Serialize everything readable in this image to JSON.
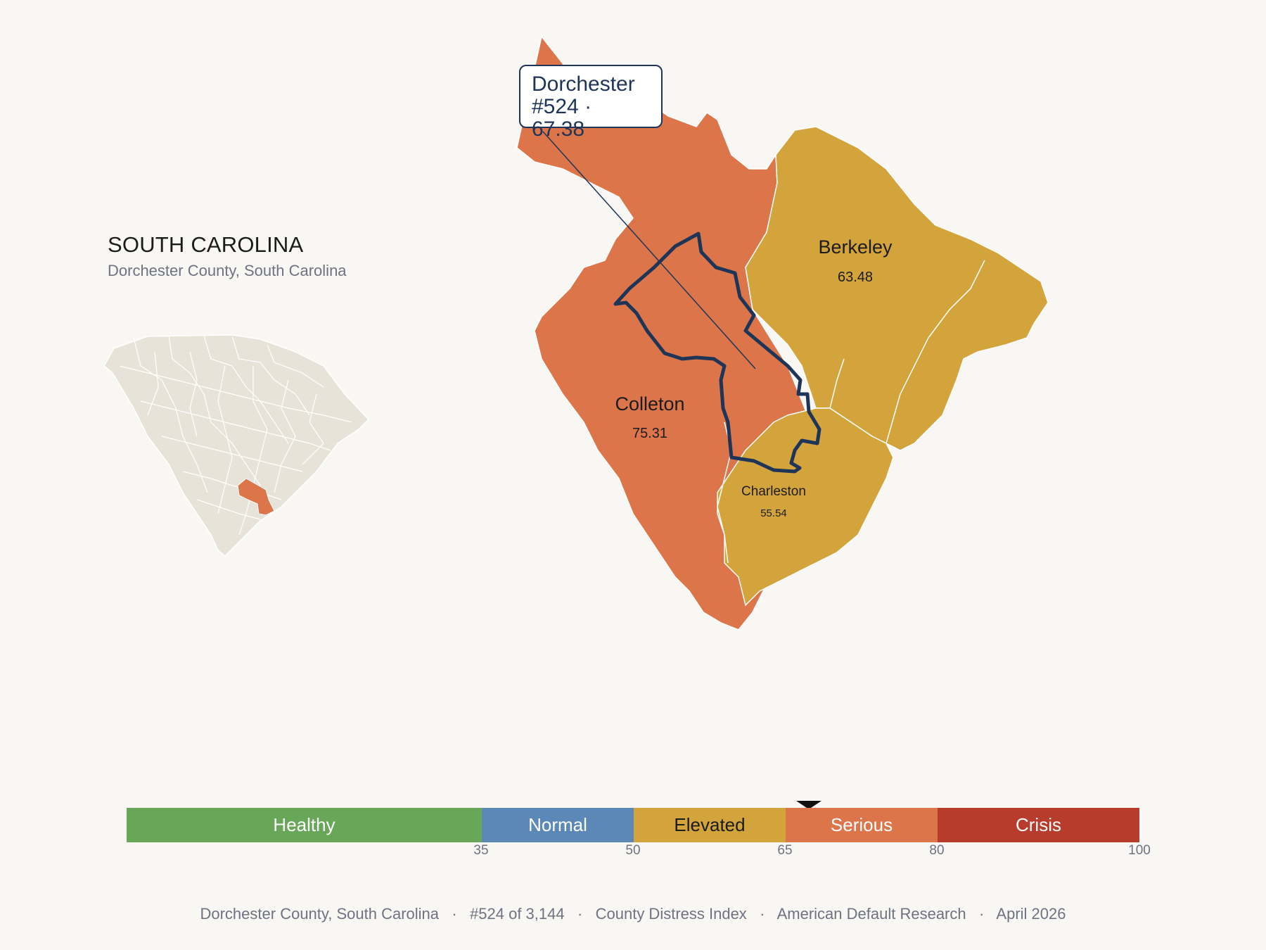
{
  "header": {
    "state": "SOUTH CAROLINA",
    "subtitle": "Dorchester County, South Carolina"
  },
  "callout": {
    "county": "Dorchester",
    "detail": "#524 · 67.38"
  },
  "counties": [
    {
      "name": "Dorchester",
      "score": "67.38",
      "color": "#dc764a"
    },
    {
      "name": "Berkeley",
      "score": "63.48",
      "color": "#d4a43c"
    },
    {
      "name": "Colleton",
      "score": "75.31",
      "color": "#dc764a"
    },
    {
      "name": "Charleston",
      "score": "55.54",
      "color": "#d4a43c"
    }
  ],
  "scale": {
    "value": 67.38,
    "segments": [
      {
        "label": "Healthy",
        "color": "#67a757",
        "text_color": "#ffffff"
      },
      {
        "label": "Normal",
        "color": "#5b88b7",
        "text_color": "#ffffff"
      },
      {
        "label": "Elevated",
        "color": "#d4a43c",
        "text_color": "#1b1b1b"
      },
      {
        "label": "Serious",
        "color": "#dc764a",
        "text_color": "#ffffff"
      },
      {
        "label": "Crisis",
        "color": "#b83c2c",
        "text_color": "#ffffff"
      }
    ],
    "ticks": [
      "35",
      "50",
      "65",
      "80",
      "100"
    ]
  },
  "colors": {
    "highlight_outline": "#1f3557",
    "inset_fill": "#e8e3d8",
    "background": "#f9f7f4"
  },
  "footer": {
    "county": "Dorchester County, South Carolina",
    "rank": "#524 of 3,144",
    "index": "County Distress Index",
    "org": "American Default Research",
    "date": "April 2026"
  }
}
